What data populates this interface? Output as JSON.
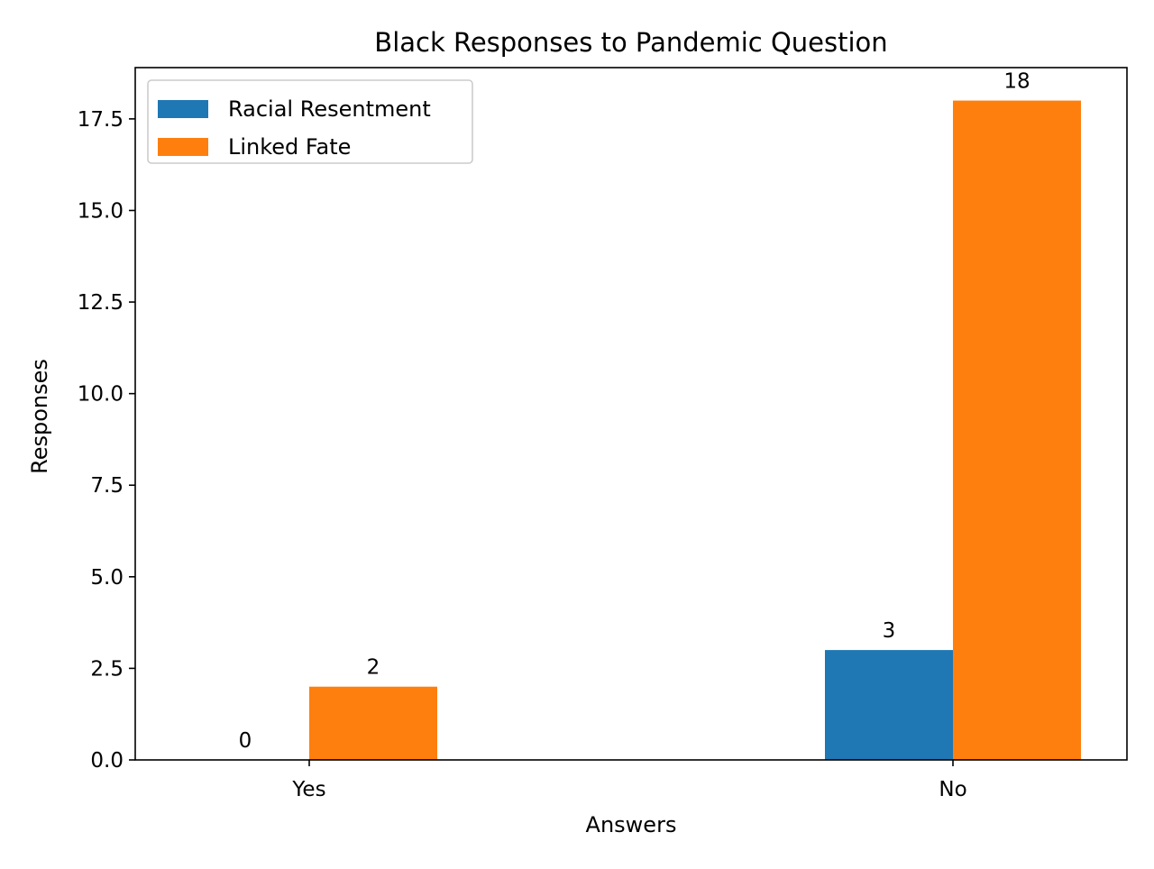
{
  "chart_data": {
    "type": "bar",
    "title": "Black Responses to Pandemic Question",
    "xlabel": "Answers",
    "ylabel": "Responses",
    "categories": [
      "Yes",
      "No"
    ],
    "series": [
      {
        "name": "Racial Resentment",
        "color": "#1f77b4",
        "values": [
          0,
          3
        ]
      },
      {
        "name": "Linked Fate",
        "color": "#ff7f0e",
        "values": [
          2,
          18
        ]
      }
    ],
    "ylim": [
      0,
      18.9
    ],
    "yticks": [
      "0.0",
      "2.5",
      "5.0",
      "7.5",
      "10.0",
      "12.5",
      "15.0",
      "17.5"
    ],
    "grid": false,
    "legend_position": "top-left"
  }
}
